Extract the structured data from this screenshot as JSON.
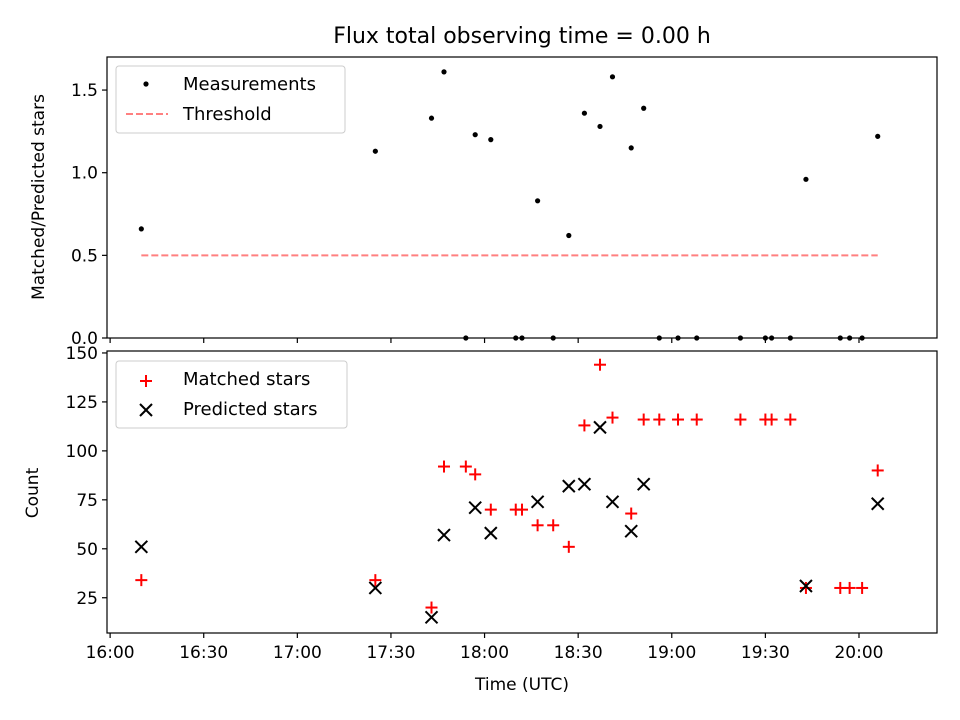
{
  "chart_data": [
    {
      "type": "scatter",
      "title": "Flux total observing time = 0.00 h",
      "ylabel": "Matched/Predicted stars",
      "xlabel": "",
      "ylim": [
        0,
        1.7
      ],
      "xlim": [
        "15:59",
        "20:25"
      ],
      "yticks": [
        0.0,
        0.5,
        1.0,
        1.5
      ],
      "ytick_labels": [
        "0.0",
        "0.5",
        "1.0",
        "1.5"
      ],
      "legend_position": "top-left",
      "threshold": {
        "name": "Threshold",
        "value": 0.5,
        "x_start": "16:10",
        "x_end": "20:06",
        "color": "#ff8080"
      },
      "series": [
        {
          "name": "Measurements",
          "color": "#000000",
          "x": [
            "16:10",
            "17:25",
            "17:43",
            "17:47",
            "17:54",
            "17:57",
            "18:02",
            "18:10",
            "18:12",
            "18:17",
            "18:22",
            "18:27",
            "18:32",
            "18:37",
            "18:41",
            "18:47",
            "18:51",
            "18:56",
            "19:02",
            "19:08",
            "19:22",
            "19:30",
            "19:32",
            "19:38",
            "19:43",
            "19:54",
            "19:57",
            "20:01",
            "20:06"
          ],
          "y": [
            0.66,
            1.13,
            1.33,
            1.61,
            0.0,
            1.23,
            1.2,
            0.0,
            0.0,
            0.83,
            0.0,
            0.62,
            1.36,
            1.28,
            1.58,
            1.15,
            1.39,
            0.0,
            0.0,
            0.0,
            0.0,
            0.0,
            0.0,
            0.0,
            0.96,
            0.0,
            0.0,
            0.0,
            1.22
          ]
        }
      ]
    },
    {
      "type": "scatter",
      "title": "",
      "ylabel": "Count",
      "xlabel": "Time (UTC)",
      "ylim": [
        7,
        151
      ],
      "xlim": [
        "15:59",
        "20:25"
      ],
      "yticks": [
        25,
        50,
        75,
        100,
        125,
        150
      ],
      "ytick_labels": [
        "25",
        "50",
        "75",
        "100",
        "125",
        "150"
      ],
      "xticks": [
        "16:00",
        "16:30",
        "17:00",
        "17:30",
        "18:00",
        "18:30",
        "19:00",
        "19:30",
        "20:00"
      ],
      "xtick_labels": [
        "16:00",
        "16:30",
        "17:00",
        "17:30",
        "18:00",
        "18:30",
        "19:00",
        "19:30",
        "20:00"
      ],
      "legend_position": "top-left",
      "series": [
        {
          "name": "Matched stars",
          "marker": "plus",
          "color": "#ff0000",
          "x": [
            "16:10",
            "17:25",
            "17:43",
            "17:47",
            "17:54",
            "17:57",
            "18:02",
            "18:10",
            "18:12",
            "18:17",
            "18:22",
            "18:27",
            "18:32",
            "18:37",
            "18:41",
            "18:47",
            "18:51",
            "18:56",
            "19:02",
            "19:08",
            "19:22",
            "19:30",
            "19:32",
            "19:38",
            "19:43",
            "19:54",
            "19:57",
            "20:01",
            "20:06"
          ],
          "y": [
            34,
            34,
            20,
            92,
            92,
            88,
            70,
            70,
            70,
            62,
            62,
            51,
            113,
            144,
            117,
            68,
            116,
            116,
            116,
            116,
            116,
            116,
            116,
            116,
            30,
            30,
            30,
            30,
            90
          ]
        },
        {
          "name": "Predicted stars",
          "marker": "x",
          "color": "#000000",
          "x": [
            "16:10",
            "17:25",
            "17:43",
            "17:47",
            "17:57",
            "18:02",
            "18:17",
            "18:27",
            "18:32",
            "18:37",
            "18:41",
            "18:47",
            "18:51",
            "19:43",
            "20:06"
          ],
          "y": [
            51,
            30,
            15,
            57,
            71,
            58,
            74,
            82,
            83,
            112,
            74,
            59,
            83,
            31,
            73
          ]
        }
      ]
    }
  ]
}
